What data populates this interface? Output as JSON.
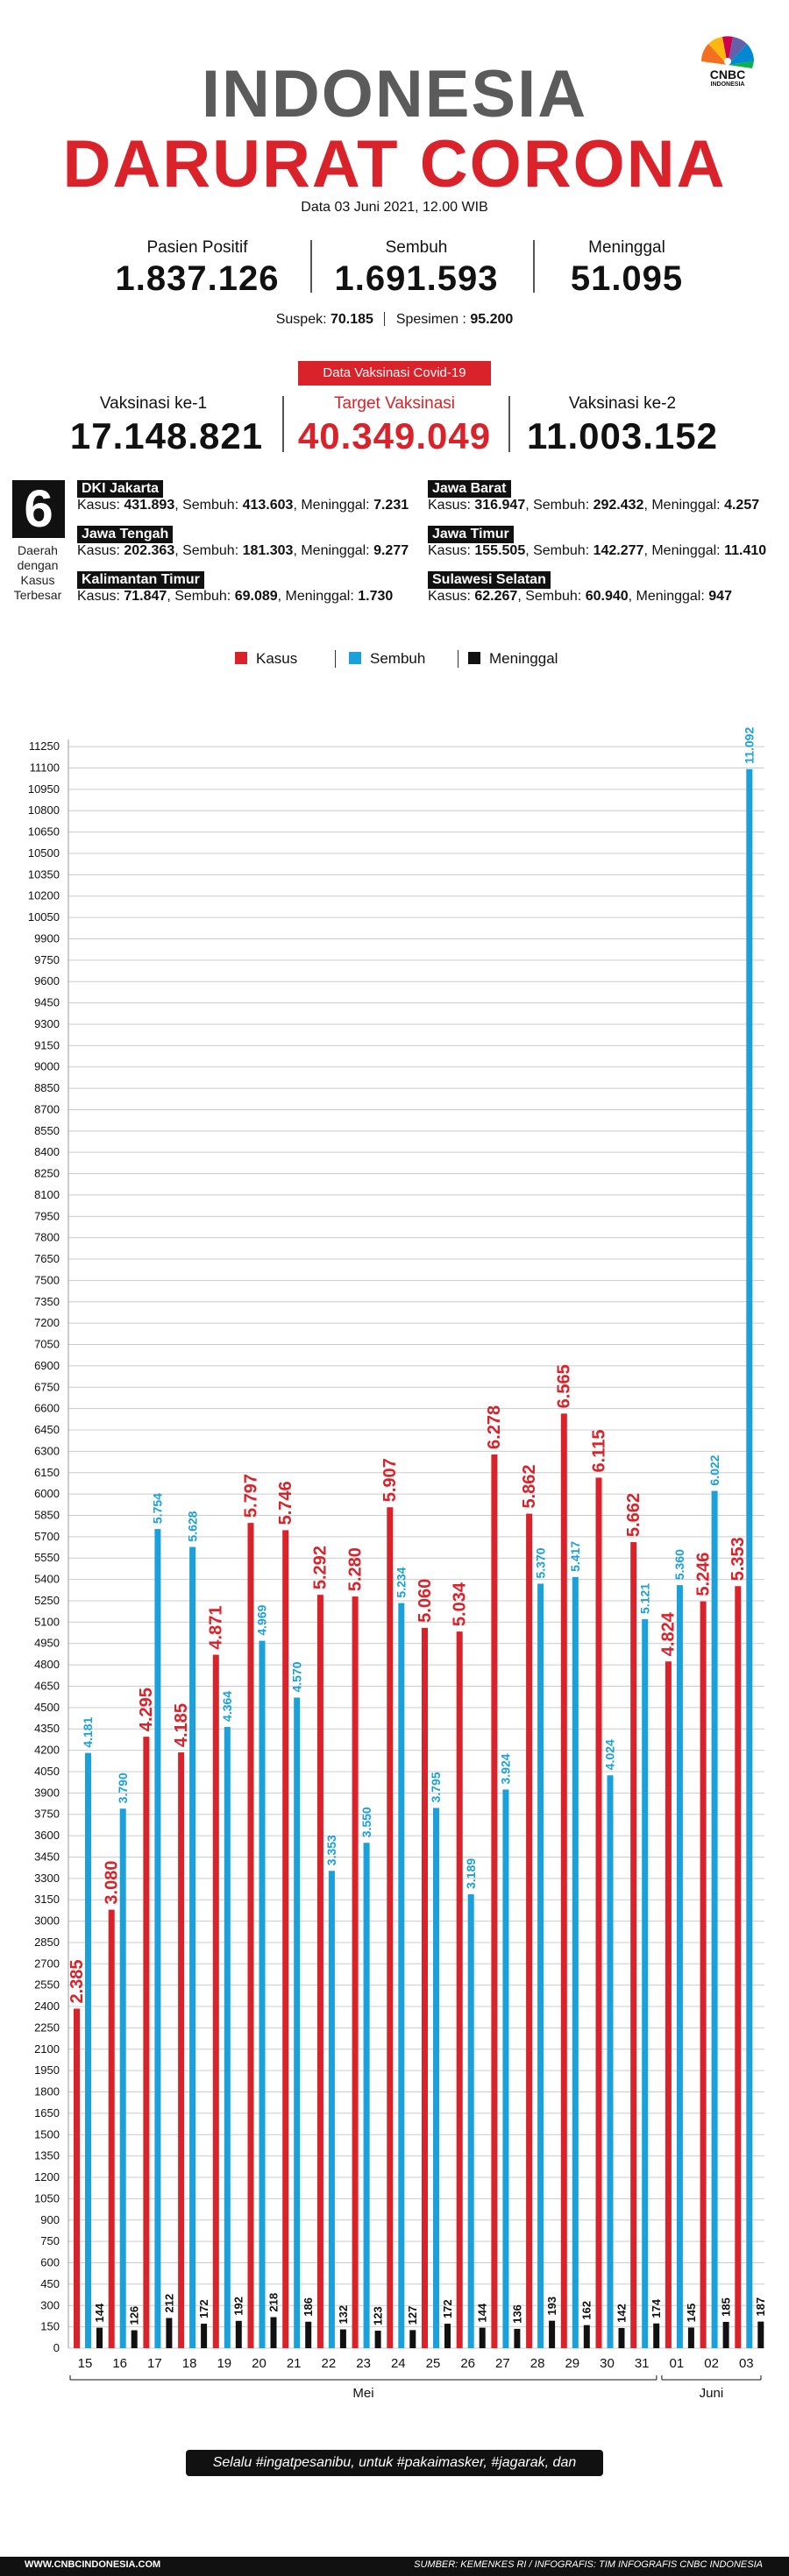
{
  "header": {
    "title_line1": "INDONESIA",
    "title_line2": "DARURAT CORONA",
    "logo_text": "CNBC",
    "logo_sub": "INDONESIA",
    "date": "Data 03 Juni 2021, 12.00 WIB"
  },
  "stats": {
    "positif_label": "Pasien Positif",
    "positif_value": "1.837.126",
    "sembuh_label": "Sembuh",
    "sembuh_value": "1.691.593",
    "meninggal_label": "Meninggal",
    "meninggal_value": "51.095",
    "suspek_label": "Suspek:",
    "suspek_value": "70.185",
    "spesimen_label": "Spesimen :",
    "spesimen_value": "95.200"
  },
  "vaksinasi": {
    "badge": "Data Vaksinasi Covid-19",
    "ke1_label": "Vaksinasi ke-1",
    "ke1_value": "17.148.821",
    "target_label": "Target Vaksinasi",
    "target_value": "40.349.049",
    "ke2_label": "Vaksinasi ke-2",
    "ke2_value": "11.003.152"
  },
  "provinces": {
    "count": "6",
    "count_label_lines": [
      "Daerah",
      "dengan",
      "Kasus",
      "Terbesar"
    ],
    "kasus_label": "Kasus:",
    "sembuh_label": "Sembuh:",
    "meninggal_label": "Meninggal:",
    "items": [
      {
        "name": "DKI Jakarta",
        "kasus": "431.893",
        "sembuh": "413.603",
        "meninggal": "7.231"
      },
      {
        "name": "Jawa Barat",
        "kasus": "316.947",
        "sembuh": "292.432",
        "meninggal": "4.257"
      },
      {
        "name": "Jawa Tengah",
        "kasus": "202.363",
        "sembuh": "181.303",
        "meninggal": "9.277"
      },
      {
        "name": "Jawa Timur",
        "kasus": "155.505",
        "sembuh": "142.277",
        "meninggal": "11.410"
      },
      {
        "name": "Kalimantan Timur",
        "kasus": "71.847",
        "sembuh": "69.089",
        "meninggal": "1.730"
      },
      {
        "name": "Sulawesi Selatan",
        "kasus": "62.267",
        "sembuh": "60.940",
        "meninggal": "947"
      }
    ]
  },
  "colors": {
    "kasus": "#d9222a",
    "sembuh": "#1aa0db",
    "meninggal": "#111111",
    "gray_title": "#5b5b5b",
    "grid": "#cccccc"
  },
  "chart_data": {
    "type": "bar",
    "categories": [
      "15",
      "16",
      "17",
      "18",
      "19",
      "20",
      "21",
      "22",
      "23",
      "24",
      "25",
      "26",
      "27",
      "28",
      "29",
      "30",
      "31",
      "01",
      "02",
      "03"
    ],
    "month_groups": [
      {
        "label": "Mei",
        "from": 0,
        "to": 16
      },
      {
        "label": "Juni",
        "from": 17,
        "to": 19
      }
    ],
    "series": [
      {
        "name": "Kasus",
        "values": [
          2385,
          3080,
          4295,
          4185,
          4871,
          5797,
          5746,
          5292,
          5280,
          5907,
          5060,
          5034,
          6278,
          5862,
          6565,
          6115,
          5662,
          4824,
          5246,
          5353
        ],
        "labels": [
          "2.385",
          "3.080",
          "4.295",
          "4.185",
          "4.871",
          "5.797",
          "5.746",
          "5.292",
          "5.280",
          "5.907",
          "5.060",
          "5.034",
          "6.278",
          "5.862",
          "6.565",
          "6.115",
          "5.662",
          "4.824",
          "5.246",
          "5.353"
        ]
      },
      {
        "name": "Sembuh",
        "values": [
          4181,
          3790,
          5754,
          5628,
          4364,
          4969,
          4570,
          3353,
          3550,
          5234,
          3795,
          3189,
          3924,
          5370,
          5417,
          4024,
          5121,
          5360,
          6022,
          11092
        ],
        "labels": [
          "4.181",
          "3.790",
          "5.754",
          "5.628",
          "4.364",
          "4.969",
          "4.570",
          "3.353",
          "3.550",
          "5.234",
          "3.795",
          "3.189",
          "3.924",
          "5.370",
          "5.417",
          "4.024",
          "5.121",
          "5.360",
          "6.022",
          "11.092"
        ]
      },
      {
        "name": "Meninggal",
        "values": [
          144,
          126,
          212,
          172,
          192,
          218,
          186,
          132,
          123,
          127,
          172,
          144,
          136,
          193,
          162,
          142,
          174,
          145,
          185,
          187
        ],
        "labels": [
          "144",
          "126",
          "212",
          "172",
          "192",
          "218",
          "186",
          "132",
          "123",
          "127",
          "172",
          "144",
          "136",
          "193",
          "162",
          "142",
          "174",
          "145",
          "185",
          "187"
        ]
      }
    ],
    "ylim": [
      0,
      11300
    ],
    "ytick_step": 150,
    "legend_position": "top"
  },
  "footer": {
    "hashtags": "Selalu #ingatpesanibu, untuk #pakaimasker, #jagarak, dan #cucitanganpakaisabun",
    "website": "WWW.CNBCINDONESIA.COM",
    "source": "SUMBER: KEMENKES RI / INFOGRAFIS: TIM INFOGRAFIS CNBC INDONESIA"
  }
}
